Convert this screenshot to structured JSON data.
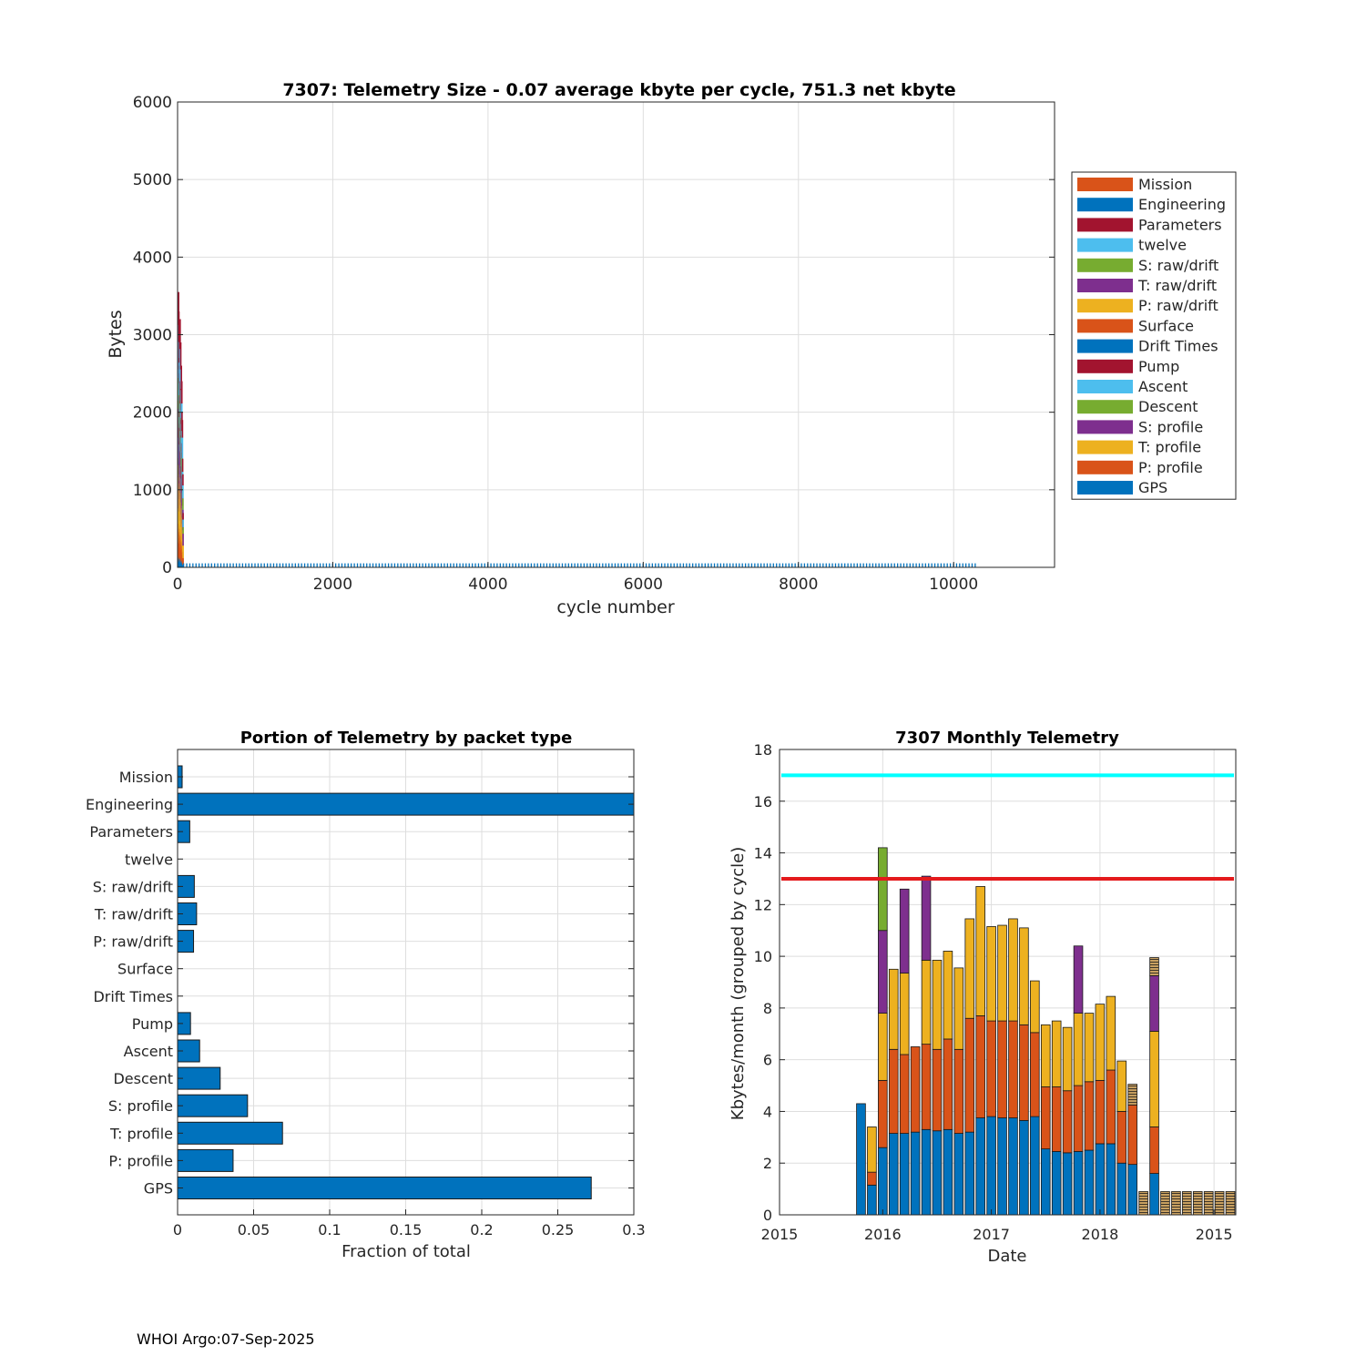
{
  "colors": {
    "blue": "#0072bd",
    "orange": "#d95319",
    "yellow": "#edb120",
    "purple": "#7e2f8e",
    "green": "#77ac30",
    "cyan": "#4dbeee",
    "maroon": "#a2142f",
    "limit_cyan": "#00ffff",
    "limit_red": "#e41a1c"
  },
  "footer": "WHOI Argo:07-Sep-2025",
  "chart_data": [
    {
      "id": "telemetry-size",
      "type": "bar",
      "title": "7307: Telemetry Size - 0.07 average kbyte per cycle,  751.3 net kbyte",
      "xlabel": "cycle number",
      "ylabel": "Bytes",
      "xlim": [
        0,
        11300
      ],
      "ylim": [
        0,
        6000
      ],
      "xticks": [
        0,
        2000,
        4000,
        6000,
        8000,
        10000
      ],
      "yticks": [
        0,
        1000,
        2000,
        3000,
        4000,
        5000,
        6000
      ],
      "grid": true,
      "legend_position": "outside-right",
      "legend": [
        {
          "label": "Mission",
          "color": "#d95319"
        },
        {
          "label": "Engineering",
          "color": "#0072bd"
        },
        {
          "label": "Parameters",
          "color": "#a2142f"
        },
        {
          "label": "twelve",
          "color": "#4dbeee"
        },
        {
          "label": "S: raw/drift",
          "color": "#77ac30"
        },
        {
          "label": "T: raw/drift",
          "color": "#7e2f8e"
        },
        {
          "label": "P: raw/drift",
          "color": "#edb120"
        },
        {
          "label": "Surface",
          "color": "#d95319"
        },
        {
          "label": "Drift Times",
          "color": "#0072bd"
        },
        {
          "label": "Pump",
          "color": "#a2142f"
        },
        {
          "label": "Ascent",
          "color": "#4dbeee"
        },
        {
          "label": "Descent",
          "color": "#77ac30"
        },
        {
          "label": "S: profile",
          "color": "#7e2f8e"
        },
        {
          "label": "T: profile",
          "color": "#edb120"
        },
        {
          "label": "P: profile",
          "color": "#d95319"
        },
        {
          "label": "GPS",
          "color": "#0072bd"
        }
      ],
      "early_cycles": {
        "x": [
          1,
          3,
          5,
          7,
          9,
          11,
          13,
          15,
          17,
          19,
          21,
          23,
          25,
          27,
          29,
          31,
          33,
          35,
          37,
          39,
          41,
          43,
          45,
          47,
          49,
          51,
          53,
          55,
          57,
          59,
          61,
          63,
          65,
          67,
          69
        ],
        "totals": [
          2800,
          3100,
          2400,
          3000,
          2600,
          3550,
          2900,
          3300,
          1900,
          2500,
          2700,
          3000,
          2200,
          1800,
          2600,
          3200,
          2400,
          2000,
          1500,
          2900,
          2300,
          1700,
          2100,
          2600,
          1900,
          1300,
          2400,
          2000,
          1600,
          1100,
          1900,
          1400,
          900,
          1200,
          700
        ]
      },
      "flat_cycles": {
        "x_start": 70,
        "x_end": 10300,
        "value": 40
      }
    },
    {
      "id": "portion-by-packet",
      "type": "bar",
      "orientation": "horizontal",
      "title": "Portion of Telemetry by packet type",
      "xlabel": "Fraction of total",
      "ylabel": "",
      "xlim": [
        0,
        0.3
      ],
      "xticks": [
        0,
        0.05,
        0.1,
        0.15,
        0.2,
        0.25,
        0.3
      ],
      "xtick_labels": [
        "0",
        "0.05",
        "0.1",
        "0.15",
        "0.2",
        "0.25",
        "0.3"
      ],
      "grid": true,
      "categories": [
        "Mission",
        "Engineering",
        "Parameters",
        "twelve",
        "S: raw/drift",
        "T: raw/drift",
        "P: raw/drift",
        "Surface",
        "Drift Times",
        "Pump",
        "Ascent",
        "Descent",
        "S: profile",
        "T: profile",
        "P: profile",
        "GPS"
      ],
      "values": [
        0.003,
        0.3,
        0.008,
        0,
        0.011,
        0.0125,
        0.0105,
        0,
        0,
        0.0085,
        0.0145,
        0.028,
        0.046,
        0.069,
        0.0365,
        0.272
      ],
      "color": "#0072bd"
    },
    {
      "id": "monthly-telemetry",
      "type": "bar",
      "stacked": true,
      "title": "7307 Monthly Telemetry",
      "xlabel": "Date",
      "ylabel": "Kbytes/month (grouped by cycle)",
      "ylim": [
        0,
        18
      ],
      "yticks": [
        0,
        2,
        4,
        6,
        8,
        10,
        12,
        14,
        16,
        18
      ],
      "xlim": [
        0,
        42
      ],
      "xticks": [
        0,
        9.5,
        19.5,
        29.5,
        40
      ],
      "xtick_labels": [
        "2015",
        "2016",
        "2017",
        "2018",
        "2015"
      ],
      "grid": true,
      "limit_lines": [
        {
          "value": 17,
          "color": "#00ffff"
        },
        {
          "value": 13,
          "color": "#e41a1c"
        }
      ],
      "series_names": [
        "GPS",
        "P: profile",
        "T: profile",
        "S: profile",
        "Descent"
      ],
      "bars": [
        {
          "x": 7.5,
          "segments": [
            4.3
          ]
        },
        {
          "x": 8.5,
          "segments": [
            1.15,
            0.5,
            1.75
          ]
        },
        {
          "x": 9.5,
          "segments": [
            2.6,
            2.6,
            2.6,
            3.2,
            3.2
          ]
        },
        {
          "x": 10.5,
          "segments": [
            3.15,
            3.25,
            3.1
          ]
        },
        {
          "x": 11.5,
          "segments": [
            3.15,
            3.05,
            3.15,
            3.25
          ]
        },
        {
          "x": 12.5,
          "segments": [
            3.2,
            3.3
          ]
        },
        {
          "x": 13.5,
          "segments": [
            3.3,
            3.3,
            3.25,
            3.25
          ]
        },
        {
          "x": 14.5,
          "segments": [
            3.25,
            3.15,
            3.45
          ]
        },
        {
          "x": 15.5,
          "segments": [
            3.3,
            3.5,
            3.4
          ]
        },
        {
          "x": 16.5,
          "segments": [
            3.15,
            3.25,
            3.15
          ]
        },
        {
          "x": 17.5,
          "segments": [
            3.2,
            4.4,
            3.85
          ]
        },
        {
          "x": 18.5,
          "segments": [
            3.75,
            3.95,
            5.0
          ]
        },
        {
          "x": 19.5,
          "segments": [
            3.8,
            3.7,
            3.65
          ]
        },
        {
          "x": 20.5,
          "segments": [
            3.75,
            3.75,
            3.7
          ]
        },
        {
          "x": 21.5,
          "segments": [
            3.75,
            3.75,
            3.95
          ]
        },
        {
          "x": 22.5,
          "segments": [
            3.65,
            3.7,
            3.75
          ]
        },
        {
          "x": 23.5,
          "segments": [
            3.8,
            3.25,
            2.0
          ]
        },
        {
          "x": 24.5,
          "segments": [
            2.55,
            2.4,
            2.4
          ]
        },
        {
          "x": 25.5,
          "segments": [
            2.45,
            2.5,
            2.55
          ]
        },
        {
          "x": 26.5,
          "segments": [
            2.4,
            2.4,
            2.45
          ]
        },
        {
          "x": 27.5,
          "segments": [
            2.45,
            2.55,
            2.8,
            2.6
          ]
        },
        {
          "x": 28.5,
          "segments": [
            2.5,
            2.65,
            2.65
          ]
        },
        {
          "x": 29.5,
          "segments": [
            2.75,
            2.45,
            2.95
          ]
        },
        {
          "x": 30.5,
          "segments": [
            2.75,
            2.85,
            2.85
          ]
        },
        {
          "x": 31.5,
          "segments": [
            2.0,
            2.0,
            1.95
          ]
        },
        {
          "x": 32.5,
          "segments": [
            1.95,
            2.3
          ],
          "striped_top": 0.8
        },
        {
          "x": 33.5,
          "segments": [],
          "striped_top": 0.9
        },
        {
          "x": 34.5,
          "segments": [
            1.6,
            1.8,
            3.7,
            2.15
          ],
          "striped_top": 0.7
        },
        {
          "x": 35.5,
          "segments": [],
          "striped_top": 0.9
        },
        {
          "x": 36.5,
          "segments": [],
          "striped_top": 0.9
        },
        {
          "x": 37.5,
          "segments": [],
          "striped_top": 0.9
        },
        {
          "x": 38.5,
          "segments": [],
          "striped_top": 0.9
        },
        {
          "x": 39.5,
          "segments": [],
          "striped_top": 0.9
        },
        {
          "x": 40.5,
          "segments": [],
          "striped_top": 0.9
        },
        {
          "x": 41.5,
          "segments": [],
          "striped_top": 0.9
        }
      ]
    }
  ]
}
